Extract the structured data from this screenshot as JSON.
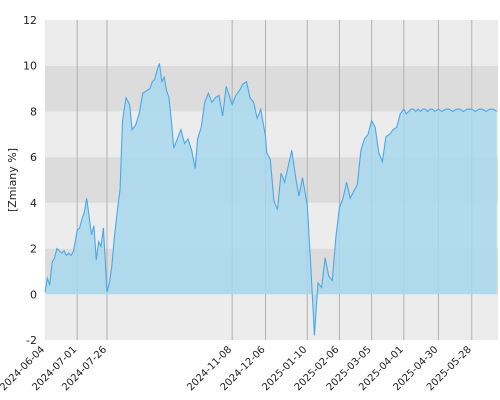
{
  "chart_data": {
    "type": "area",
    "title": "",
    "xlabel": "",
    "ylabel": "[Zmiany %]",
    "ylim": [
      -2,
      12
    ],
    "y_ticks": [
      -2,
      0,
      2,
      4,
      6,
      8,
      10,
      12
    ],
    "x_range": [
      "2024-06-04",
      "2025-06-19"
    ],
    "x_ticks": [
      "2024-06-04",
      "2024-07-01",
      "2024-07-26",
      "2024-11-08",
      "2024-12-06",
      "2025-01-10",
      "2025-02-06",
      "2025-03-05",
      "2025-04-01",
      "2025-04-30",
      "2025-05-28"
    ],
    "grid": true,
    "colors": {
      "line": "#4aa8e8",
      "fill": "#a8d8ee",
      "band_dark": "#dcdcdc",
      "band_light": "#ececec",
      "gridline": "#b0b0b0"
    },
    "series": [
      {
        "x": [
          "2024-06-04",
          "2024-06-06",
          "2024-06-08",
          "2024-06-10",
          "2024-06-12",
          "2024-06-14",
          "2024-06-16",
          "2024-06-18",
          "2024-06-20",
          "2024-06-22",
          "2024-06-24",
          "2024-06-26",
          "2024-06-28",
          "2024-07-01",
          "2024-07-03",
          "2024-07-05",
          "2024-07-07",
          "2024-07-09",
          "2024-07-11",
          "2024-07-13",
          "2024-07-15",
          "2024-07-17",
          "2024-07-19",
          "2024-07-21",
          "2024-07-23",
          "2024-07-26",
          "2024-07-28",
          "2024-07-30",
          "2024-08-01",
          "2024-08-04",
          "2024-08-06",
          "2024-08-08",
          "2024-08-11",
          "2024-08-14",
          "2024-08-16",
          "2024-08-19",
          "2024-08-22",
          "2024-08-25",
          "2024-08-28",
          "2024-08-31",
          "2024-09-02",
          "2024-09-04",
          "2024-09-06",
          "2024-09-08",
          "2024-09-10",
          "2024-09-12",
          "2024-09-14",
          "2024-09-16",
          "2024-09-18",
          "2024-09-20",
          "2024-09-23",
          "2024-09-26",
          "2024-09-29",
          "2024-10-02",
          "2024-10-05",
          "2024-10-08",
          "2024-10-10",
          "2024-10-13",
          "2024-10-16",
          "2024-10-19",
          "2024-10-22",
          "2024-10-25",
          "2024-10-28",
          "2024-10-31",
          "2024-11-03",
          "2024-11-08",
          "2024-11-11",
          "2024-11-14",
          "2024-11-17",
          "2024-11-20",
          "2024-11-23",
          "2024-11-26",
          "2024-11-29",
          "2024-12-02",
          "2024-12-06",
          "2024-12-07",
          "2024-12-10",
          "2024-12-13",
          "2024-12-16",
          "2024-12-19",
          "2024-12-22",
          "2024-12-25",
          "2024-12-28",
          "2024-12-31",
          "2025-01-03",
          "2025-01-06",
          "2025-01-10",
          "2025-01-13",
          "2025-01-16",
          "2025-01-19",
          "2025-01-22",
          "2025-01-25",
          "2025-01-28",
          "2025-01-31",
          "2025-02-03",
          "2025-02-06",
          "2025-02-09",
          "2025-02-12",
          "2025-02-15",
          "2025-02-18",
          "2025-02-21",
          "2025-02-24",
          "2025-02-27",
          "2025-03-02",
          "2025-03-05",
          "2025-03-08",
          "2025-03-11",
          "2025-03-14",
          "2025-03-17",
          "2025-03-20",
          "2025-03-23",
          "2025-03-26",
          "2025-03-29",
          "2025-04-01",
          "2025-04-03",
          "2025-04-05",
          "2025-04-07",
          "2025-04-09",
          "2025-04-11",
          "2025-04-13",
          "2025-04-15",
          "2025-04-17",
          "2025-04-19",
          "2025-04-21",
          "2025-04-23",
          "2025-04-25",
          "2025-04-27",
          "2025-04-30",
          "2025-05-03",
          "2025-05-06",
          "2025-05-09",
          "2025-05-12",
          "2025-05-15",
          "2025-05-18",
          "2025-05-21",
          "2025-05-24",
          "2025-05-28",
          "2025-05-31",
          "2025-06-03",
          "2025-06-06",
          "2025-06-09",
          "2025-06-12",
          "2025-06-15",
          "2025-06-18"
        ],
        "y": [
          0.1,
          0.7,
          0.4,
          1.4,
          1.6,
          2.0,
          1.9,
          1.8,
          1.9,
          1.7,
          1.8,
          1.7,
          1.9,
          2.8,
          2.9,
          3.3,
          3.6,
          4.2,
          3.4,
          2.6,
          3.0,
          1.5,
          2.3,
          2.1,
          2.9,
          0.1,
          0.5,
          1.2,
          2.4,
          3.8,
          4.6,
          7.6,
          8.6,
          8.3,
          7.2,
          7.4,
          7.9,
          8.8,
          8.9,
          9.0,
          9.3,
          9.4,
          9.8,
          10.1,
          9.3,
          9.5,
          8.9,
          8.6,
          7.6,
          6.4,
          6.8,
          7.2,
          6.6,
          6.8,
          6.3,
          5.5,
          6.8,
          7.3,
          8.4,
          8.8,
          8.4,
          8.6,
          8.7,
          7.8,
          9.1,
          8.3,
          8.7,
          8.9,
          9.2,
          9.3,
          8.6,
          8.4,
          7.7,
          8.1,
          6.9,
          6.2,
          5.9,
          4.1,
          3.7,
          5.3,
          4.9,
          5.6,
          6.3,
          5.2,
          4.3,
          5.1,
          3.9,
          1.2,
          -1.8,
          0.5,
          0.3,
          1.6,
          0.8,
          0.6,
          2.5,
          3.8,
          4.2,
          4.9,
          4.2,
          4.5,
          4.8,
          6.3,
          6.8,
          7.0,
          7.6,
          7.3,
          6.2,
          5.8,
          6.9,
          7.0,
          7.2,
          7.3,
          7.9,
          8.1,
          7.9,
          8.0,
          8.1,
          8.1,
          8.0,
          8.1,
          8.0,
          8.1,
          8.1,
          8.0,
          8.1,
          8.1,
          8.0,
          8.1,
          8.0,
          8.1,
          8.1,
          8.0,
          8.1,
          8.1,
          8.0,
          8.1,
          8.1,
          8.0,
          8.1,
          8.1,
          8.0,
          8.1,
          8.1,
          8.0
        ]
      }
    ]
  }
}
